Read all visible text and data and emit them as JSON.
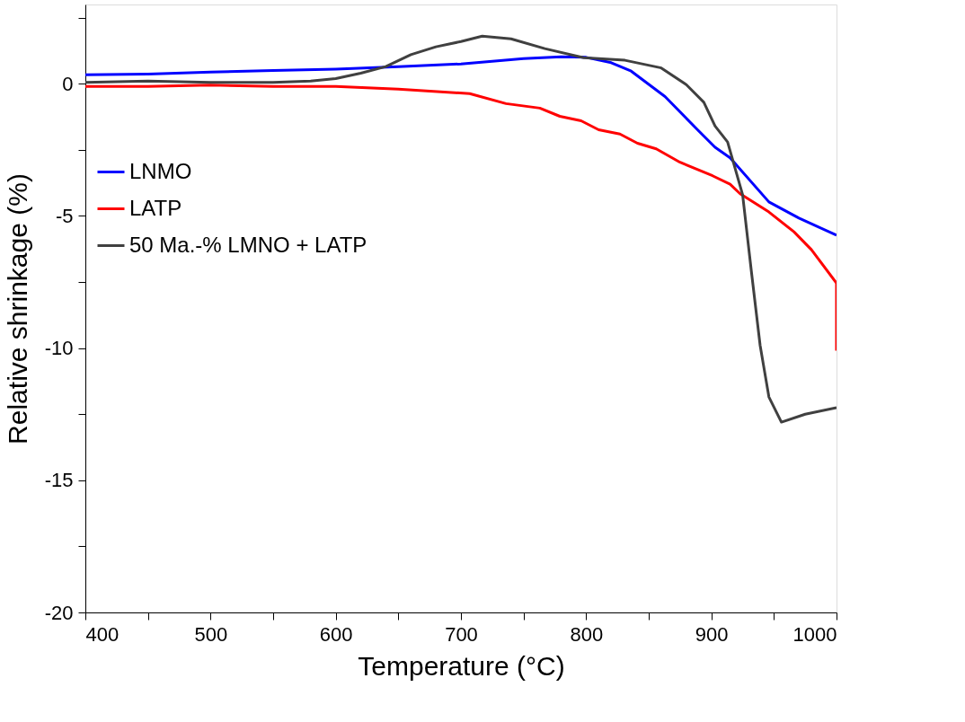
{
  "chart_data": {
    "type": "line",
    "xlabel": "Temperature (°C)",
    "ylabel": "Relative shrinkage (%)",
    "xlim": [
      400,
      1000
    ],
    "ylim": [
      -20,
      3
    ],
    "xticks": [
      400,
      {
        "value": 450,
        "label": null
      },
      500,
      {
        "value": 550,
        "label": null
      },
      600,
      {
        "value": 650,
        "label": null
      },
      700,
      {
        "value": 750,
        "label": null
      },
      800,
      {
        "value": 850,
        "label": null
      },
      900,
      {
        "value": 950,
        "label": null
      },
      1000
    ],
    "yticks": [
      -20,
      {
        "value": -17.5,
        "label": null
      },
      -15,
      {
        "value": -12.5,
        "label": null
      },
      -10,
      {
        "value": -7.5,
        "label": null
      },
      -5,
      {
        "value": -2.5,
        "label": null
      },
      0,
      {
        "value": 2.5,
        "label": null
      }
    ],
    "grid": false,
    "legend": "left",
    "line_style": "solid",
    "marker": "none",
    "series": [
      {
        "name": "LNMO",
        "color": "#0000ff",
        "x": [
          400,
          450,
          500,
          550,
          600,
          650,
          700,
          750,
          780,
          800,
          820,
          836,
          863,
          889,
          903,
          915,
          946,
          970,
          1000
        ],
        "values": [
          0.34,
          0.37,
          0.44,
          0.5,
          0.55,
          0.65,
          0.75,
          0.95,
          1.02,
          1.0,
          0.8,
          0.48,
          -0.48,
          -1.74,
          -2.4,
          -2.8,
          -4.47,
          -5.08,
          -5.73
        ]
      },
      {
        "name": "LATP",
        "color": "#ff0000",
        "x": [
          400,
          450,
          500,
          550,
          600,
          650,
          707,
          736,
          763,
          779,
          796,
          810,
          827,
          841,
          856,
          875,
          901,
          915,
          923,
          946,
          966,
          980,
          1000,
          1000
        ],
        "values": [
          -0.1,
          -0.1,
          -0.05,
          -0.1,
          -0.1,
          -0.2,
          -0.37,
          -0.75,
          -0.92,
          -1.23,
          -1.4,
          -1.74,
          -1.9,
          -2.25,
          -2.46,
          -2.97,
          -3.48,
          -3.8,
          -4.16,
          -4.85,
          -5.6,
          -6.28,
          -7.54,
          -10.1
        ]
      },
      {
        "name": "50 Ma.-% LMNO + LATP",
        "color": "#404040",
        "x": [
          400,
          450,
          500,
          550,
          580,
          600,
          620,
          640,
          660,
          680,
          700,
          717,
          740,
          767,
          798,
          831,
          860,
          880,
          894,
          903,
          913,
          925,
          932,
          939,
          946,
          956,
          975,
          1000
        ],
        "values": [
          0.05,
          0.1,
          0.05,
          0.05,
          0.1,
          0.2,
          0.4,
          0.65,
          1.1,
          1.4,
          1.6,
          1.8,
          1.7,
          1.33,
          0.99,
          0.89,
          0.6,
          -0.03,
          -0.7,
          -1.6,
          -2.2,
          -4.2,
          -7.1,
          -9.9,
          -11.85,
          -12.8,
          -12.5,
          -12.25
        ]
      }
    ]
  }
}
